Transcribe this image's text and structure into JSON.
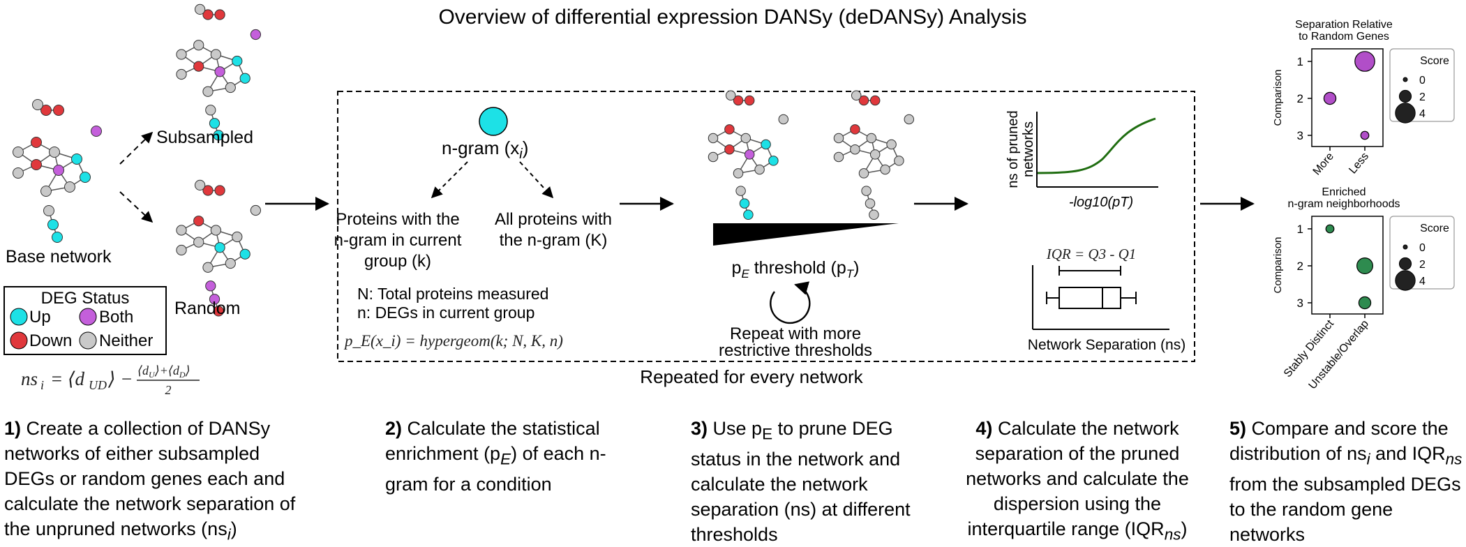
{
  "title": "Overview of differential expression DANSy (deDANSy) Analysis",
  "colors": {
    "up": "#1de1e6",
    "both": "#c45fdb",
    "down": "#e0383c",
    "neither": "#c9c9c9",
    "line": "#000000",
    "curve": "#1f6d10",
    "bubble_purple": "#b14ec8",
    "bubble_green": "#2e8b4f"
  },
  "panel1": {
    "labels": {
      "subsampled": "Subsampled",
      "random": "Random",
      "base": "Base network"
    },
    "legend": {
      "title": "DEG Status",
      "up": "Up",
      "both": "Both",
      "down": "Down",
      "neither": "Neither"
    },
    "formula": "ns_i = ⟨d_UD⟩ − (⟨d_U⟩+⟨d_D⟩)/2"
  },
  "panel2": {
    "ngram": "n-gram (x",
    "ngram_sub": "i",
    "ngram_close": ")",
    "left_label": [
      "Proteins with the",
      "n-gram in current",
      "group (k)"
    ],
    "right_label": [
      "All proteins with",
      "the n-gram (K)"
    ],
    "N_def": "N: Total proteins measured",
    "n_def": "n: DEGs in current group",
    "formula": "p_E(x_i) = hypergeom(k; N, K, n)"
  },
  "panel3": {
    "threshold_label": "p_E threshold (p_T)",
    "repeat": [
      "Repeat with more",
      "restrictive thresholds"
    ]
  },
  "panel4": {
    "ylabel": [
      "ns of pruned",
      "networks"
    ],
    "xlabel": "-log10(pT)",
    "iqr_label": "IQR = Q3 - Q1",
    "box_xlabel": "Network Separation (ns)"
  },
  "repeated": "Repeated for every network",
  "chart_data": [
    {
      "type": "scatter",
      "title": "Separation Relative to Random Genes",
      "ylabel": "Comparison",
      "categories": [
        "More",
        "Less"
      ],
      "y_ticks": [
        "1",
        "2",
        "3"
      ],
      "points": [
        {
          "x": "Less",
          "y": 1,
          "score": 4
        },
        {
          "x": "More",
          "y": 2,
          "score": 2
        },
        {
          "x": "Less",
          "y": 3,
          "score": 1
        }
      ],
      "legend": {
        "title": "Score",
        "entries": [
          "0",
          "2",
          "4"
        ]
      }
    },
    {
      "type": "scatter",
      "title": "Enriched n-gram neighborhoods",
      "ylabel": "Comparison",
      "categories": [
        "Stably Distinct",
        "Unstable/Overlap"
      ],
      "y_ticks": [
        "1",
        "2",
        "3"
      ],
      "points": [
        {
          "x": "Stably Distinct",
          "y": 1,
          "score": 1
        },
        {
          "x": "Unstable/Overlap",
          "y": 2,
          "score": 3
        },
        {
          "x": "Unstable/Overlap",
          "y": 3,
          "score": 2
        }
      ],
      "legend": {
        "title": "Score",
        "entries": [
          "0",
          "2",
          "4"
        ]
      }
    }
  ],
  "captions": [
    {
      "num": "1)",
      "text": "Create a collection of DANSy networks of either subsampled DEGs or random genes each and calculate the network separation of the unpruned networks (ns",
      "sub": "i",
      "end": ")"
    },
    {
      "num": "2)",
      "text": "Calculate the statistical enrichment (p",
      "sub": "E",
      "end": ") of each n-gram for a condition"
    },
    {
      "num": "3)",
      "text": "Use p",
      "sub": "E",
      "end": " to prune DEG status in the network and calculate the network separation (ns) at different thresholds"
    },
    {
      "num": "4)",
      "text": "Calculate the network separation of the pruned networks and calculate the dispersion using the interquartile range (IQR",
      "sub": "ns",
      "end": ")"
    },
    {
      "num": "5)",
      "text": "Compare and score the distribution of ns",
      "sub": "i",
      "mid": " and IQR",
      "sub2": "ns",
      "end": " from the subsampled DEGs to the random gene networks"
    }
  ]
}
